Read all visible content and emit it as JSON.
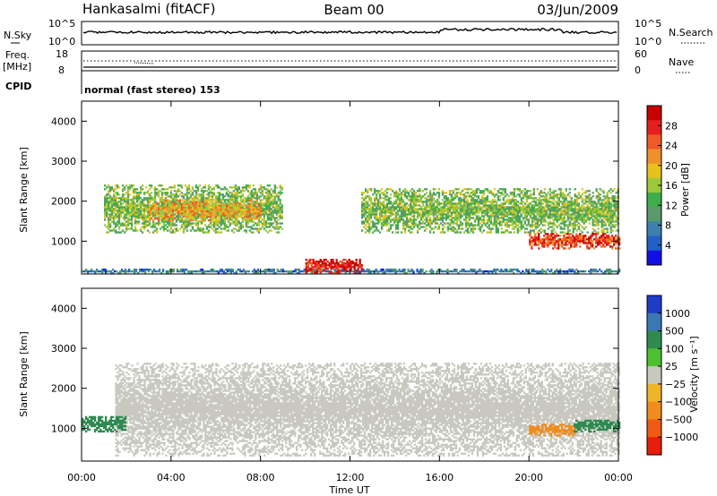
{
  "header": {
    "site": "Hankasalmi (fitACF)",
    "beam": "Beam 00",
    "date": "03/Jun/2009"
  },
  "panels_top": {
    "nsky_label": "N.Sky",
    "nsky_ticks": [
      "10^5",
      "10^0"
    ],
    "nsearch_label": "N.Search",
    "nsearch_ticks": [
      "10^5",
      "10^0"
    ],
    "freq_label": "Freq.",
    "freq_unit": "[MHz]",
    "freq_ticks": [
      "18",
      "8"
    ],
    "nave_label": "Nave",
    "nave_ticks": [
      "60",
      "0"
    ],
    "cpid_label": "CPID",
    "cpid_text": "normal (fast stereo) 153"
  },
  "chart_data": [
    {
      "type": "heatmap",
      "name": "power",
      "ylabel": "Slant Range [km]",
      "xlabel": "",
      "ylim": [
        180,
        4500
      ],
      "xlim": [
        "00:00",
        "00:00"
      ],
      "yticks": [
        "1000",
        "2000",
        "3000",
        "4000"
      ],
      "colorbar": {
        "label": "Power [dB]",
        "ticks": [
          "4",
          "8",
          "12",
          "16",
          "20",
          "24",
          "28"
        ],
        "colors": [
          "#1010e6",
          "#2060c8",
          "#3c7fb0",
          "#5a9a6a",
          "#3fae4a",
          "#9ec83c",
          "#e6c21e",
          "#f09028",
          "#f05a28",
          "#e61e1e",
          "#c80000"
        ]
      },
      "description_bands": [
        {
          "t_start_h": 0.0,
          "t_end_h": 24.0,
          "range_low_km": 180,
          "range_high_km": 280,
          "power_db": 8
        },
        {
          "t_start_h": 1.0,
          "t_end_h": 9.0,
          "range_low_km": 1200,
          "range_high_km": 2400,
          "power_db": 14
        },
        {
          "t_start_h": 3.0,
          "t_end_h": 8.0,
          "range_low_km": 1500,
          "range_high_km": 2000,
          "power_db": 20
        },
        {
          "t_start_h": 10.0,
          "t_end_h": 12.5,
          "range_low_km": 200,
          "range_high_km": 550,
          "power_db": 28
        },
        {
          "t_start_h": 12.5,
          "t_end_h": 24.0,
          "range_low_km": 1200,
          "range_high_km": 2300,
          "power_db": 14
        },
        {
          "t_start_h": 20.0,
          "t_end_h": 24.0,
          "range_low_km": 800,
          "range_high_km": 1200,
          "power_db": 26
        }
      ]
    },
    {
      "type": "heatmap",
      "name": "velocity",
      "ylabel": "Slant Range [km]",
      "xlabel": "Time UT",
      "ylim": [
        180,
        4500
      ],
      "xticks": [
        "00:00",
        "04:00",
        "08:00",
        "12:00",
        "16:00",
        "20:00",
        "00:00"
      ],
      "yticks": [
        "1000",
        "2000",
        "3000",
        "4000"
      ],
      "colorbar": {
        "label": "Velocity [m s⁻¹]",
        "ticks": [
          "1000",
          "500",
          "100",
          "25",
          "−25",
          "−100",
          "−500",
          "−1000"
        ],
        "colors": [
          "#1e3cc8",
          "#3a78b4",
          "#2f8a50",
          "#4cc030",
          "#c8c8c0",
          "#f0b428",
          "#f08c1e",
          "#f05a14",
          "#e61e0a"
        ]
      },
      "description_bands": [
        {
          "t_start_h": 1.5,
          "t_end_h": 24.0,
          "range_low_km": 300,
          "range_high_km": 2600,
          "velocity_ms": 0
        },
        {
          "t_start_h": 0.0,
          "t_end_h": 2.0,
          "range_low_km": 900,
          "range_high_km": 1300,
          "velocity_ms": 200
        },
        {
          "t_start_h": 20.0,
          "t_end_h": 22.0,
          "range_low_km": 800,
          "range_high_km": 1100,
          "velocity_ms": -400
        },
        {
          "t_start_h": 22.0,
          "t_end_h": 24.0,
          "range_low_km": 900,
          "range_high_km": 1200,
          "velocity_ms": 150
        }
      ]
    }
  ]
}
